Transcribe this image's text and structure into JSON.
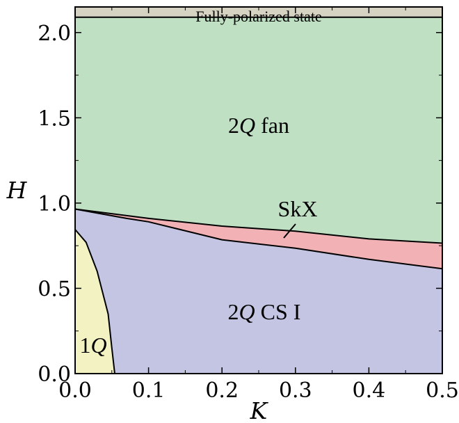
{
  "chart_data": {
    "type": "area",
    "title": "",
    "xlabel": "K",
    "ylabel": "H",
    "xlim": [
      0,
      0.5
    ],
    "ylim": [
      0,
      2.15
    ],
    "xticks": [
      "0.0",
      "0.1",
      "0.2",
      "0.3",
      "0.4",
      "0.5"
    ],
    "yticks": [
      "0.0",
      "0.5",
      "1.0",
      "1.5",
      "2.0"
    ],
    "grid": false,
    "colors": {
      "fully_polarized": "#d6d3c2",
      "fan": "#bfe0c3",
      "skx": "#f2b2b5",
      "cs1": "#c3c5e3",
      "oneq": "#f3f2c3"
    },
    "boundaries": {
      "saturation_field": 2.09,
      "fan_upper": [
        [
          0.0,
          0.965
        ],
        [
          0.1,
          0.91
        ],
        [
          0.2,
          0.865
        ],
        [
          0.3,
          0.835
        ],
        [
          0.4,
          0.79
        ],
        [
          0.5,
          0.765
        ]
      ],
      "cs_upper": [
        [
          0.0,
          0.965
        ],
        [
          0.07,
          0.91
        ],
        [
          0.1,
          0.89
        ],
        [
          0.2,
          0.785
        ],
        [
          0.3,
          0.735
        ],
        [
          0.4,
          0.67
        ],
        [
          0.5,
          0.615
        ]
      ],
      "oneq_edge": [
        [
          0.0,
          0.845
        ],
        [
          0.015,
          0.77
        ],
        [
          0.03,
          0.6
        ],
        [
          0.045,
          0.35
        ],
        [
          0.05,
          0.15
        ],
        [
          0.054,
          0.0
        ]
      ]
    },
    "regions": [
      {
        "key": "banner",
        "label": "Fully-polarized state"
      },
      {
        "key": "fan",
        "label_math": "2",
        "label_q": "Q",
        "label_tail": " fan"
      },
      {
        "key": "skx",
        "label": "SkX"
      },
      {
        "key": "cs1",
        "label_math": "2",
        "label_q": "Q",
        "label_tail": " CS I"
      },
      {
        "key": "oneq",
        "label_math": "1",
        "label_q": "Q",
        "label_tail": ""
      }
    ]
  }
}
